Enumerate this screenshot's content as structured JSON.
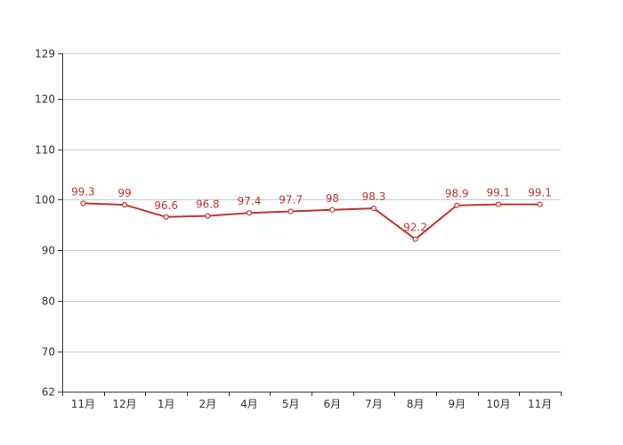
{
  "chart_data": {
    "type": "line",
    "categories": [
      "11月",
      "12月",
      "1月",
      "2月",
      "4月",
      "5月",
      "6月",
      "7月",
      "8月",
      "9月",
      "10月",
      "11月"
    ],
    "series": [
      {
        "values": [
          99.3,
          99,
          96.6,
          96.8,
          97.4,
          97.7,
          98,
          98.3,
          92.2,
          98.9,
          99.1,
          99.1
        ],
        "labels": [
          "99.3",
          "99",
          "96.6",
          "96.8",
          "97.4",
          "97.7",
          "98",
          "98.3",
          "92.2",
          "98.9",
          "99.1",
          "99.1"
        ]
      }
    ],
    "y_ticks": [
      {
        "value": 62,
        "label": "62"
      },
      {
        "value": 70,
        "label": "70"
      },
      {
        "value": 80,
        "label": "80"
      },
      {
        "value": 90,
        "label": "90"
      },
      {
        "value": 100,
        "label": "100"
      },
      {
        "value": 110,
        "label": "110"
      },
      {
        "value": 120,
        "label": "120"
      },
      {
        "value": 129,
        "label": "129"
      }
    ],
    "ylim": [
      62,
      129
    ],
    "grid": true,
    "line_color": "#c23531",
    "grid_color": "#cccccc",
    "axis_color": "#333333"
  }
}
